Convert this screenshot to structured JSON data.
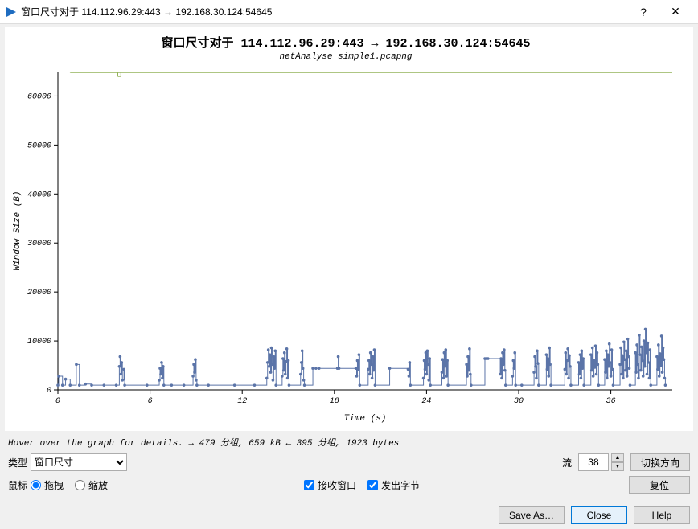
{
  "window": {
    "title": "窗口尺寸对于 114.112.96.29:443 → 192.168.30.124:54645",
    "help_icon": "?",
    "close_icon": "✕"
  },
  "chart": {
    "title": "窗口尺寸对于 114.112.96.29:443 → 192.168.30.124:54645",
    "subtitle": "netAnalyse_simple1.pcapng",
    "ylabel": "Window Size (B)",
    "xlabel": "Time (s)",
    "ylim": [
      0,
      65000
    ],
    "yticks": [
      0,
      10000,
      20000,
      30000,
      40000,
      50000,
      60000
    ],
    "xlim": [
      0,
      40
    ],
    "xticks": [
      0,
      6,
      12,
      18,
      24,
      30,
      36
    ],
    "series_color": "#5b74a8",
    "green_line_color": "#94b35a",
    "green_line_y": 64800,
    "axis_color": "#000000",
    "tick_fontsize": 10,
    "label_fontsize": 11,
    "data": [
      [
        0.0,
        960
      ],
      [
        0.05,
        2800
      ],
      [
        0.3,
        960
      ],
      [
        0.5,
        2200
      ],
      [
        0.8,
        960
      ],
      [
        1.2,
        5200
      ],
      [
        1.4,
        960
      ],
      [
        1.8,
        1200
      ],
      [
        2.2,
        960
      ],
      [
        3.0,
        960
      ],
      [
        3.8,
        960
      ],
      [
        4.0,
        4800
      ],
      [
        4.05,
        6800
      ],
      [
        4.1,
        3200
      ],
      [
        4.15,
        5600
      ],
      [
        4.2,
        2000
      ],
      [
        4.3,
        4200
      ],
      [
        4.35,
        960
      ],
      [
        5.8,
        960
      ],
      [
        6.6,
        2000
      ],
      [
        6.65,
        4400
      ],
      [
        6.7,
        3200
      ],
      [
        6.75,
        5600
      ],
      [
        6.8,
        2400
      ],
      [
        6.85,
        4800
      ],
      [
        6.9,
        960
      ],
      [
        7.4,
        960
      ],
      [
        8.2,
        960
      ],
      [
        8.8,
        2800
      ],
      [
        8.85,
        5200
      ],
      [
        8.9,
        3600
      ],
      [
        8.95,
        6200
      ],
      [
        9.0,
        2000
      ],
      [
        9.05,
        960
      ],
      [
        9.8,
        960
      ],
      [
        11.5,
        960
      ],
      [
        12.8,
        960
      ],
      [
        13.6,
        2400
      ],
      [
        13.65,
        5600
      ],
      [
        13.7,
        8200
      ],
      [
        13.75,
        4800
      ],
      [
        13.8,
        7200
      ],
      [
        13.85,
        3600
      ],
      [
        13.9,
        8600
      ],
      [
        13.95,
        5200
      ],
      [
        14.0,
        2000
      ],
      [
        14.05,
        6800
      ],
      [
        14.1,
        4400
      ],
      [
        14.15,
        8000
      ],
      [
        14.2,
        960
      ],
      [
        14.6,
        2800
      ],
      [
        14.65,
        6400
      ],
      [
        14.7,
        4000
      ],
      [
        14.75,
        7600
      ],
      [
        14.8,
        3200
      ],
      [
        14.85,
        5800
      ],
      [
        14.9,
        8400
      ],
      [
        14.95,
        2400
      ],
      [
        15.0,
        6000
      ],
      [
        15.05,
        960
      ],
      [
        15.8,
        3200
      ],
      [
        15.85,
        5600
      ],
      [
        15.9,
        8000
      ],
      [
        15.95,
        4400
      ],
      [
        16.0,
        2000
      ],
      [
        16.05,
        960
      ],
      [
        16.6,
        4400
      ],
      [
        16.8,
        4400
      ],
      [
        17.0,
        4400
      ],
      [
        18.2,
        4400
      ],
      [
        18.25,
        6800
      ],
      [
        18.3,
        4400
      ],
      [
        19.4,
        4400
      ],
      [
        19.45,
        2800
      ],
      [
        19.5,
        6000
      ],
      [
        19.55,
        4200
      ],
      [
        19.6,
        7200
      ],
      [
        19.65,
        960
      ],
      [
        20.2,
        4200
      ],
      [
        20.25,
        6000
      ],
      [
        20.3,
        3200
      ],
      [
        20.35,
        7600
      ],
      [
        20.4,
        5200
      ],
      [
        20.45,
        2400
      ],
      [
        20.5,
        6800
      ],
      [
        20.55,
        4000
      ],
      [
        20.6,
        8200
      ],
      [
        20.65,
        960
      ],
      [
        21.6,
        4400
      ],
      [
        22.8,
        4200
      ],
      [
        22.85,
        2800
      ],
      [
        22.9,
        5600
      ],
      [
        22.95,
        960
      ],
      [
        23.8,
        2400
      ],
      [
        23.85,
        6000
      ],
      [
        23.9,
        4200
      ],
      [
        23.95,
        7600
      ],
      [
        24.0,
        3200
      ],
      [
        24.05,
        8000
      ],
      [
        24.1,
        5200
      ],
      [
        24.15,
        2000
      ],
      [
        24.2,
        6400
      ],
      [
        24.25,
        960
      ],
      [
        25.0,
        3600
      ],
      [
        25.05,
        6200
      ],
      [
        25.1,
        2400
      ],
      [
        25.15,
        7600
      ],
      [
        25.2,
        4800
      ],
      [
        25.25,
        8200
      ],
      [
        25.3,
        2800
      ],
      [
        25.35,
        6000
      ],
      [
        25.4,
        960
      ],
      [
        26.6,
        5200
      ],
      [
        26.65,
        2800
      ],
      [
        26.7,
        6800
      ],
      [
        26.75,
        4000
      ],
      [
        26.8,
        8400
      ],
      [
        26.85,
        3200
      ],
      [
        26.9,
        960
      ],
      [
        27.8,
        6400
      ],
      [
        27.9,
        6400
      ],
      [
        28.0,
        6400
      ],
      [
        28.8,
        3200
      ],
      [
        28.85,
        6400
      ],
      [
        28.9,
        2400
      ],
      [
        28.95,
        7600
      ],
      [
        29.0,
        5200
      ],
      [
        29.05,
        8200
      ],
      [
        29.1,
        4000
      ],
      [
        29.15,
        960
      ],
      [
        29.6,
        2800
      ],
      [
        29.65,
        6000
      ],
      [
        29.7,
        4400
      ],
      [
        29.75,
        7600
      ],
      [
        29.8,
        960
      ],
      [
        30.2,
        960
      ],
      [
        31.0,
        3600
      ],
      [
        31.05,
        6800
      ],
      [
        31.1,
        4800
      ],
      [
        31.15,
        2400
      ],
      [
        31.2,
        8000
      ],
      [
        31.25,
        5400
      ],
      [
        31.3,
        960
      ],
      [
        31.8,
        7200
      ],
      [
        31.85,
        4200
      ],
      [
        31.9,
        6400
      ],
      [
        31.95,
        2800
      ],
      [
        32.0,
        8600
      ],
      [
        32.05,
        5200
      ],
      [
        32.1,
        960
      ],
      [
        33.0,
        4200
      ],
      [
        33.05,
        7600
      ],
      [
        33.1,
        3200
      ],
      [
        33.15,
        6000
      ],
      [
        33.2,
        8400
      ],
      [
        33.25,
        2400
      ],
      [
        33.3,
        7000
      ],
      [
        33.35,
        4800
      ],
      [
        33.4,
        960
      ],
      [
        33.9,
        5600
      ],
      [
        33.95,
        3200
      ],
      [
        34.0,
        7200
      ],
      [
        34.05,
        2400
      ],
      [
        34.1,
        8000
      ],
      [
        34.15,
        4400
      ],
      [
        34.2,
        6400
      ],
      [
        34.25,
        960
      ],
      [
        34.7,
        7200
      ],
      [
        34.75,
        4000
      ],
      [
        34.8,
        8600
      ],
      [
        34.85,
        2800
      ],
      [
        34.9,
        6000
      ],
      [
        34.95,
        4600
      ],
      [
        35.0,
        9000
      ],
      [
        35.05,
        3200
      ],
      [
        35.1,
        7600
      ],
      [
        35.15,
        5200
      ],
      [
        35.2,
        960
      ],
      [
        35.6,
        6200
      ],
      [
        35.65,
        3600
      ],
      [
        35.7,
        8000
      ],
      [
        35.75,
        2400
      ],
      [
        35.8,
        7200
      ],
      [
        35.85,
        4800
      ],
      [
        35.9,
        9400
      ],
      [
        35.95,
        5600
      ],
      [
        36.0,
        2800
      ],
      [
        36.05,
        8200
      ],
      [
        36.1,
        4200
      ],
      [
        36.15,
        960
      ],
      [
        36.6,
        5200
      ],
      [
        36.65,
        8600
      ],
      [
        36.7,
        3200
      ],
      [
        36.75,
        7000
      ],
      [
        36.8,
        2400
      ],
      [
        36.85,
        9800
      ],
      [
        36.9,
        6200
      ],
      [
        36.95,
        4000
      ],
      [
        37.0,
        8000
      ],
      [
        37.05,
        2800
      ],
      [
        37.1,
        10400
      ],
      [
        37.15,
        6800
      ],
      [
        37.2,
        4400
      ],
      [
        37.25,
        960
      ],
      [
        37.6,
        7600
      ],
      [
        37.65,
        3600
      ],
      [
        37.7,
        9200
      ],
      [
        37.75,
        5200
      ],
      [
        37.8,
        2400
      ],
      [
        37.85,
        11200
      ],
      [
        37.9,
        7200
      ],
      [
        37.95,
        4000
      ],
      [
        38.0,
        8800
      ],
      [
        38.05,
        6000
      ],
      [
        38.1,
        2800
      ],
      [
        38.15,
        10000
      ],
      [
        38.2,
        4800
      ],
      [
        38.25,
        12400
      ],
      [
        38.3,
        7600
      ],
      [
        38.35,
        3200
      ],
      [
        38.4,
        9600
      ],
      [
        38.45,
        5600
      ],
      [
        38.5,
        2400
      ],
      [
        38.55,
        8200
      ],
      [
        38.6,
        960
      ],
      [
        39.0,
        6800
      ],
      [
        39.05,
        4200
      ],
      [
        39.1,
        9200
      ],
      [
        39.15,
        2800
      ],
      [
        39.2,
        7400
      ],
      [
        39.25,
        5000
      ],
      [
        39.3,
        11000
      ],
      [
        39.35,
        3600
      ],
      [
        39.4,
        8600
      ],
      [
        39.45,
        6200
      ],
      [
        39.5,
        2400
      ],
      [
        39.55,
        960
      ]
    ]
  },
  "hint": "Hover over the graph for details. → 479 分组, 659 kB ← 395 分组, 1923 bytes",
  "controls": {
    "type_label": "类型",
    "type_value": "窗口尺寸",
    "stream_label": "流",
    "stream_value": "38",
    "switch_dir": "切换方向",
    "mouse_label": "鼠标",
    "drag_label": "拖拽",
    "zoom_label": "缩放",
    "recv_window": "接收窗口",
    "sent_bytes": "发出字节",
    "reset": "复位",
    "save_as": "Save As…",
    "close": "Close",
    "help": "Help"
  }
}
